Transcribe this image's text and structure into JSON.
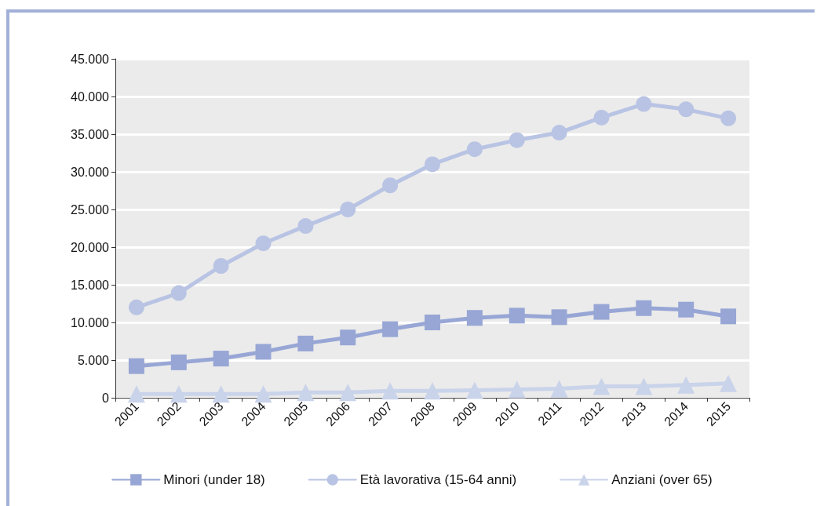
{
  "chart_data": {
    "type": "line",
    "categories": [
      "2001",
      "2002",
      "2003",
      "2004",
      "2005",
      "2006",
      "2007",
      "2008",
      "2009",
      "2010",
      "2011",
      "2012",
      "2013",
      "2014",
      "2015"
    ],
    "series": [
      {
        "name": "Minori (under 18)",
        "color": "#97a6d5",
        "marker": "square",
        "values": [
          4200,
          4700,
          5200,
          6100,
          7200,
          8000,
          9100,
          10000,
          10600,
          10900,
          10700,
          11400,
          11900,
          11700,
          10800
        ]
      },
      {
        "name": "Età lavorativa (15-64 anni)",
        "color": "#b9c4e4",
        "marker": "circle",
        "values": [
          12000,
          13900,
          17500,
          20500,
          22800,
          25000,
          28200,
          31000,
          33000,
          34200,
          35200,
          37200,
          39000,
          38300,
          37100
        ]
      },
      {
        "name": "Anziani (over 65)",
        "color": "#c9d3ea",
        "marker": "triangle",
        "values": [
          500,
          500,
          500,
          500,
          700,
          700,
          900,
          900,
          1000,
          1100,
          1200,
          1500,
          1500,
          1700,
          1900
        ]
      }
    ],
    "ylim": [
      0,
      45000
    ],
    "yticks": [
      {
        "value": 0,
        "label": "0"
      },
      {
        "value": 5000,
        "label": "5.000"
      },
      {
        "value": 10000,
        "label": "10.000"
      },
      {
        "value": 15000,
        "label": "15.000"
      },
      {
        "value": 20000,
        "label": "20.000"
      },
      {
        "value": 25000,
        "label": "25.000"
      },
      {
        "value": 30000,
        "label": "30.000"
      },
      {
        "value": 35000,
        "label": "35.000"
      },
      {
        "value": 40000,
        "label": "40.000"
      },
      {
        "value": 45000,
        "label": "45.000"
      }
    ],
    "grid": "y",
    "legend": "bottom",
    "line_style": "solid"
  }
}
